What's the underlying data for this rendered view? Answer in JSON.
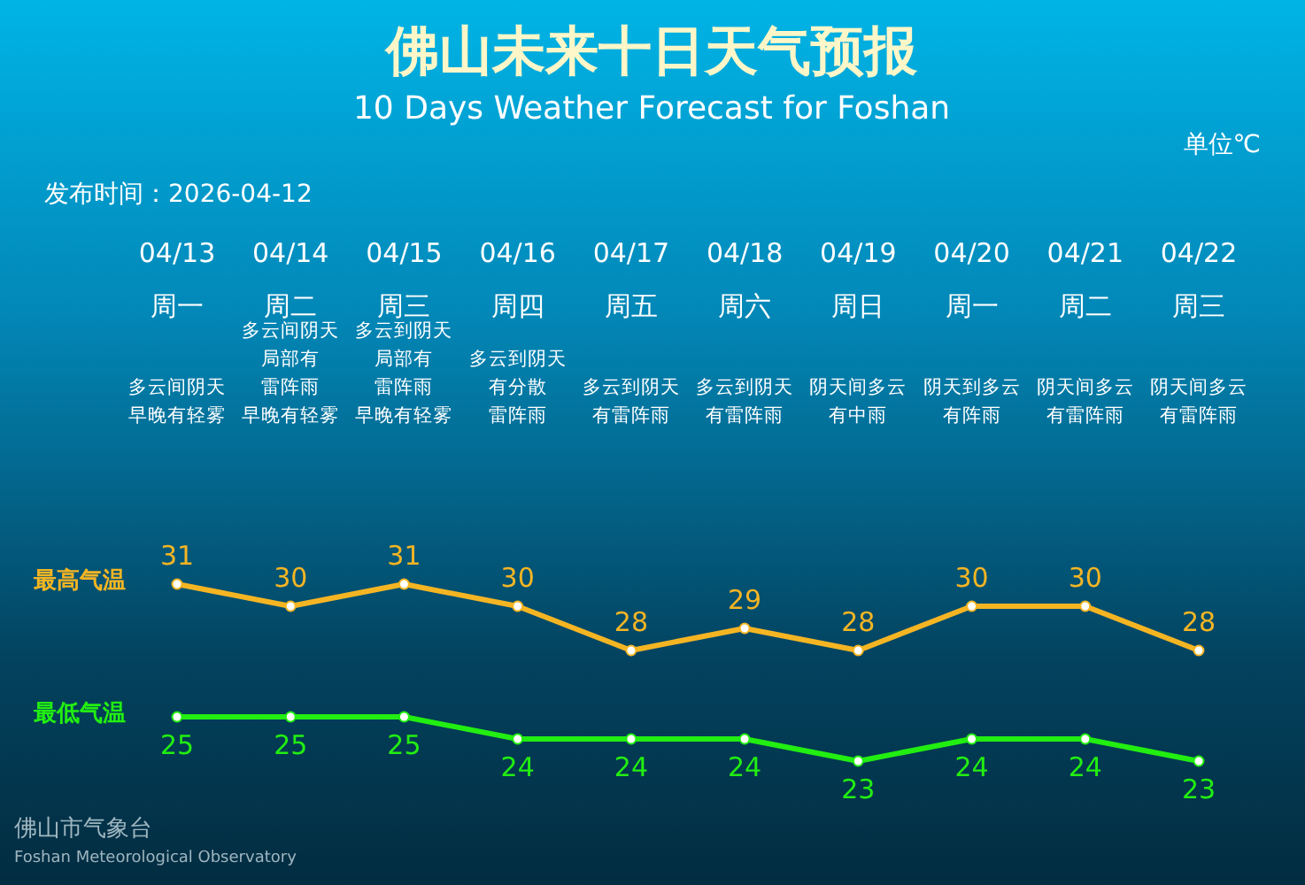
{
  "chart_data": {
    "type": "line",
    "title": "佛山未来十日天气预报",
    "subtitle": "10 Days Weather Forecast for Foshan",
    "annotations": [
      "单位℃",
      "发布时间：2026-04-12",
      "佛山市气象台",
      "Foshan Meteorological Observatory",
      "周一",
      "周二",
      "周三",
      "周四",
      "周五",
      "周六",
      "周日",
      "周一",
      "周二",
      "周三",
      "多云间阴天",
      "早晚有轻雾",
      "多云间阴天",
      "局部有",
      "雷阵雨",
      "早晚有轻雾",
      "多云到阴天",
      "局部有",
      "雷阵雨",
      "早晚有轻雾",
      "多云到阴天",
      "有分散",
      "雷阵雨",
      "多云到阴天",
      "有雷阵雨",
      "多云到阴天",
      "有雷阵雨",
      "阴天间多云",
      "有中雨",
      "阴天到多云",
      "有阵雨",
      "阴天间多云",
      "有雷阵雨",
      "阴天间多云",
      "有雷阵雨"
    ],
    "categories": [
      "04/13",
      "04/14",
      "04/15",
      "04/16",
      "04/17",
      "04/18",
      "04/19",
      "04/20",
      "04/21",
      "04/22"
    ],
    "series": [
      {
        "name": "最高气温",
        "color": "#f5b523",
        "values": [
          31,
          30,
          31,
          30,
          28,
          29,
          28,
          30,
          30,
          28
        ]
      },
      {
        "name": "最低气温",
        "color": "#22ee11",
        "values": [
          25,
          25,
          25,
          24,
          24,
          24,
          23,
          24,
          24,
          23
        ]
      }
    ],
    "data_labels": true,
    "marker": "circle",
    "line_style": "solid"
  }
}
